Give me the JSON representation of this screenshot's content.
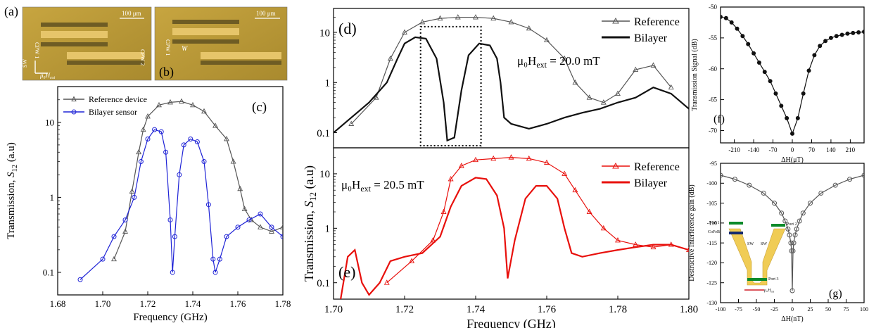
{
  "colors": {
    "blue": "#1f23d6",
    "black": "#111111",
    "red": "#e8100c",
    "gray": "#555555",
    "gold": "#c8a23a",
    "copper": "#d9a84a",
    "yellow": "#f0cc55"
  },
  "micrographs": {
    "scale_bar": "100 μm",
    "cpw1": "CPW 1",
    "cpw2": "CPW 2",
    "sw": "SW",
    "field": "μ₀H",
    "field_sub": "ext",
    "width": "W",
    "label_a": "(a)",
    "label_b": "(b)"
  },
  "chart_data": [
    {
      "id": "c",
      "type": "line",
      "panel_label": "(c)",
      "xlabel": "Frequency (GHz)",
      "ylabel": "Transmission, ",
      "ylabel_sym": "S",
      "ylabel_sub": "12",
      "ylabel_unit": " (a.u)",
      "xlim": [
        1.68,
        1.78
      ],
      "ylim": [
        0.05,
        30
      ],
      "yscale": "log",
      "xticks": [
        "1.68",
        "1.70",
        "1.72",
        "1.74",
        "1.76",
        "1.78"
      ],
      "yticks": [
        "0.1",
        "1",
        "10"
      ],
      "legend_placement": "top-left",
      "series": [
        {
          "name": "Reference device",
          "color": "gray",
          "marker": "triangle",
          "x": [
            1.705,
            1.71,
            1.713,
            1.716,
            1.718,
            1.72,
            1.725,
            1.73,
            1.735,
            1.74,
            1.745,
            1.75,
            1.755,
            1.758,
            1.761,
            1.763,
            1.766,
            1.77,
            1.775,
            1.78
          ],
          "y": [
            0.15,
            0.35,
            1.2,
            4,
            8,
            12,
            17,
            18.5,
            19,
            17,
            14,
            9,
            6,
            3,
            1.3,
            0.7,
            0.5,
            0.4,
            0.35,
            0.4
          ]
        },
        {
          "name": "Bilayer sensor",
          "color": "blue",
          "marker": "circle",
          "x": [
            1.69,
            1.7,
            1.705,
            1.71,
            1.714,
            1.717,
            1.72,
            1.723,
            1.726,
            1.728,
            1.73,
            1.731,
            1.732,
            1.734,
            1.736,
            1.739,
            1.742,
            1.745,
            1.747,
            1.749,
            1.75,
            1.752,
            1.755,
            1.76,
            1.765,
            1.77,
            1.775,
            1.78
          ],
          "y": [
            0.08,
            0.15,
            0.3,
            0.5,
            1,
            3,
            6,
            8,
            7.5,
            4,
            0.5,
            0.1,
            0.3,
            2,
            5,
            6,
            5.5,
            3,
            0.8,
            0.15,
            0.1,
            0.15,
            0.3,
            0.4,
            0.5,
            0.6,
            0.4,
            0.3
          ]
        }
      ]
    },
    {
      "id": "d",
      "type": "line",
      "panel_label": "(d)",
      "xlim": [
        1.7,
        1.8
      ],
      "ylim": [
        0.05,
        30
      ],
      "yscale": "log",
      "yticks": [
        "0.1",
        "1",
        "10"
      ],
      "annotation": "μ₀H",
      "annotation_sub": "ext",
      "annotation_value": " = 20.0 mT",
      "legend_placement": "top-right",
      "series": [
        {
          "name": "Reference",
          "color": "gray",
          "marker": "triangle",
          "x": [
            1.705,
            1.712,
            1.716,
            1.72,
            1.725,
            1.73,
            1.735,
            1.74,
            1.745,
            1.75,
            1.755,
            1.76,
            1.765,
            1.768,
            1.772,
            1.776,
            1.78,
            1.785,
            1.79,
            1.795
          ],
          "y": [
            0.15,
            0.5,
            3,
            10,
            16,
            19,
            20,
            20,
            19,
            16,
            12,
            7,
            3,
            1,
            0.5,
            0.4,
            0.6,
            1.8,
            2.2,
            0.8
          ]
        },
        {
          "name": "Bilayer",
          "color": "black",
          "marker": "none",
          "x": [
            1.7,
            1.705,
            1.71,
            1.715,
            1.718,
            1.72,
            1.723,
            1.726,
            1.729,
            1.731,
            1.732,
            1.734,
            1.736,
            1.738,
            1.741,
            1.744,
            1.746,
            1.747,
            1.748,
            1.75,
            1.755,
            1.76,
            1.765,
            1.77,
            1.775,
            1.78,
            1.785,
            1.79,
            1.795,
            1.8
          ],
          "y": [
            0.1,
            0.2,
            0.4,
            1,
            3,
            6,
            8,
            7.5,
            3,
            0.4,
            0.07,
            0.08,
            0.7,
            3.5,
            6,
            5.5,
            3,
            1,
            0.2,
            0.15,
            0.12,
            0.15,
            0.2,
            0.25,
            0.3,
            0.4,
            0.5,
            0.8,
            0.6,
            0.3
          ]
        }
      ]
    },
    {
      "id": "e",
      "type": "line",
      "panel_label": "(e)",
      "xlabel": "Frequency (GHz)",
      "ylabel": "Transmission, ",
      "ylabel_sym": "S",
      "ylabel_sub": "12",
      "ylabel_unit": " (a.u)",
      "xlim": [
        1.7,
        1.8
      ],
      "ylim": [
        0.05,
        30
      ],
      "yscale": "log",
      "xticks": [
        "1.70",
        "1.72",
        "1.74",
        "1.76",
        "1.78",
        "1.80"
      ],
      "yticks": [
        "0.1",
        "1",
        "10"
      ],
      "annotation": "μ₀H",
      "annotation_sub": "ext",
      "annotation_value": " = 20.5 mT",
      "legend_placement": "top-right",
      "series": [
        {
          "name": "Reference",
          "color": "red",
          "marker": "triangle",
          "x": [
            1.715,
            1.722,
            1.728,
            1.731,
            1.733,
            1.736,
            1.74,
            1.745,
            1.75,
            1.755,
            1.76,
            1.765,
            1.768,
            1.772,
            1.776,
            1.78,
            1.785,
            1.79,
            1.795,
            1.8
          ],
          "y": [
            0.1,
            0.25,
            0.6,
            2,
            8,
            14,
            18,
            19,
            20,
            19,
            16,
            10,
            5,
            2,
            1,
            0.6,
            0.5,
            0.45,
            0.5,
            0.4
          ]
        },
        {
          "name": "Bilayer",
          "color": "red",
          "marker": "none",
          "x": [
            1.702,
            1.704,
            1.706,
            1.708,
            1.71,
            1.713,
            1.716,
            1.72,
            1.725,
            1.73,
            1.733,
            1.736,
            1.74,
            1.743,
            1.746,
            1.748,
            1.749,
            1.751,
            1.754,
            1.757,
            1.76,
            1.763,
            1.765,
            1.767,
            1.77,
            1.775,
            1.78,
            1.785,
            1.79,
            1.795,
            1.8
          ],
          "y": [
            0.05,
            0.3,
            0.4,
            0.1,
            0.06,
            0.1,
            0.25,
            0.3,
            0.35,
            0.7,
            2.5,
            6,
            8.5,
            8,
            4,
            1,
            0.12,
            0.6,
            3.5,
            6,
            6,
            3.5,
            1,
            0.35,
            0.3,
            0.35,
            0.4,
            0.45,
            0.5,
            0.5,
            0.4
          ]
        }
      ]
    },
    {
      "id": "f",
      "type": "line",
      "panel_label": "(f)",
      "xlabel": "ΔH",
      "xlabel_unit": "(μT)",
      "ylabel": "Transmission Signal (dB)",
      "xlim": [
        -260,
        260
      ],
      "ylim": [
        -72,
        -50
      ],
      "xticks": [
        "-210",
        "-140",
        "-70",
        "0",
        "70",
        "140",
        "210"
      ],
      "yticks": [
        "-70",
        "-65",
        "-60",
        "-55",
        "-50"
      ],
      "series": [
        {
          "name": "",
          "color": "black",
          "marker": "circle",
          "x": [
            -260,
            -240,
            -220,
            -200,
            -180,
            -160,
            -140,
            -120,
            -100,
            -80,
            -60,
            -40,
            -20,
            0,
            20,
            40,
            60,
            80,
            100,
            120,
            140,
            160,
            180,
            200,
            220,
            240,
            260
          ],
          "y": [
            -51.6,
            -51.8,
            -52.5,
            -53.5,
            -54.7,
            -56,
            -57.5,
            -59,
            -60.5,
            -62,
            -64,
            -66,
            -68,
            -70.5,
            -68,
            -64,
            -60.3,
            -57.8,
            -56.3,
            -55.5,
            -55,
            -54.7,
            -54.5,
            -54.3,
            -54.2,
            -54.1,
            -54
          ]
        }
      ]
    },
    {
      "id": "g",
      "type": "line",
      "panel_label": "(g)",
      "xlabel": "ΔH",
      "xlabel_unit": "(nT)",
      "ylabel": "Destructive Interference gain (dB)",
      "xlim": [
        -100,
        100
      ],
      "ylim": [
        -130,
        -95
      ],
      "xticks": [
        "-100",
        "-75",
        "-50",
        "-25",
        "0",
        "25",
        "50",
        "75",
        "100"
      ],
      "yticks": [
        "-130",
        "-125",
        "-120",
        "-115",
        "-110",
        "-105",
        "-100",
        "-95"
      ],
      "inset_labels": {
        "port1": "Port 1",
        "port2": "Port 2",
        "port3": "Port 3",
        "cofeb": "CoFeB",
        "sw1": "SW",
        "sw2": "SW",
        "field": "μ₀H",
        "field_sub": "ext"
      },
      "series": [
        {
          "name": "",
          "color": "gray",
          "marker": "circle",
          "x": [
            -100,
            -80,
            -60,
            -40,
            -25,
            -15,
            -10,
            -6,
            -4,
            -2,
            -1,
            0,
            1,
            2,
            4,
            6,
            10,
            15,
            25,
            40,
            60,
            80,
            100
          ],
          "y": [
            -98,
            -99,
            -100.5,
            -102.5,
            -105,
            -107.5,
            -109.5,
            -111.5,
            -113,
            -115,
            -117,
            -127,
            -117,
            -115,
            -113,
            -111.5,
            -109.5,
            -107.5,
            -105,
            -102.5,
            -100.5,
            -99,
            -98
          ]
        }
      ]
    }
  ]
}
